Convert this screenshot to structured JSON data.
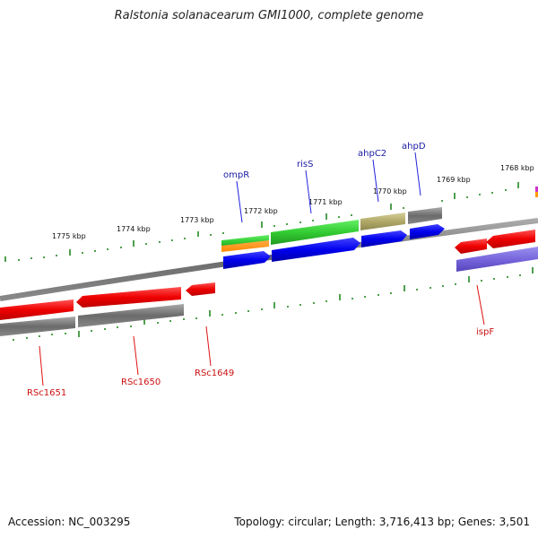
{
  "header": {
    "title": "Ralstonia solanacearum GMI1000, complete genome"
  },
  "footer": {
    "accession": "Accession: NC_003295",
    "topology": "Topology: circular; Length: 3,716,413 bp; Genes: 3,501"
  },
  "ruler": {
    "ticks": [
      {
        "label": "1775 kbp"
      },
      {
        "label": "1774 kbp"
      },
      {
        "label": "1773 kbp"
      },
      {
        "label": "1772 kbp"
      },
      {
        "label": "1771 kbp"
      },
      {
        "label": "1770 kbp"
      },
      {
        "label": "1769 kbp"
      },
      {
        "label": "1768 kbp"
      }
    ]
  },
  "genes": {
    "forward": [
      {
        "label": "ompR",
        "color": "#2222dd"
      },
      {
        "label": "risS",
        "color": "#2222dd"
      },
      {
        "label": "ahpC2",
        "color": "#2222dd"
      },
      {
        "label": "ahpD",
        "color": "#2222dd"
      }
    ],
    "reverse": [
      {
        "label": "RSc1651",
        "color": "#dd1111"
      },
      {
        "label": "RSc1650",
        "color": "#dd1111"
      },
      {
        "label": "RSc1649",
        "color": "#dd1111"
      },
      {
        "label": "ispF",
        "color": "#dd1111"
      }
    ]
  },
  "colors": {
    "backbone": "#808080",
    "forward_cds": "#1010e0",
    "reverse_cds": "#ee1111",
    "gray_feature": "#707070",
    "green_feature": "#33cc33",
    "orange_feature": "#ff8800",
    "khaki_feature": "#b8b070",
    "purple_feature": "#7766dd",
    "tick": "#228822"
  }
}
